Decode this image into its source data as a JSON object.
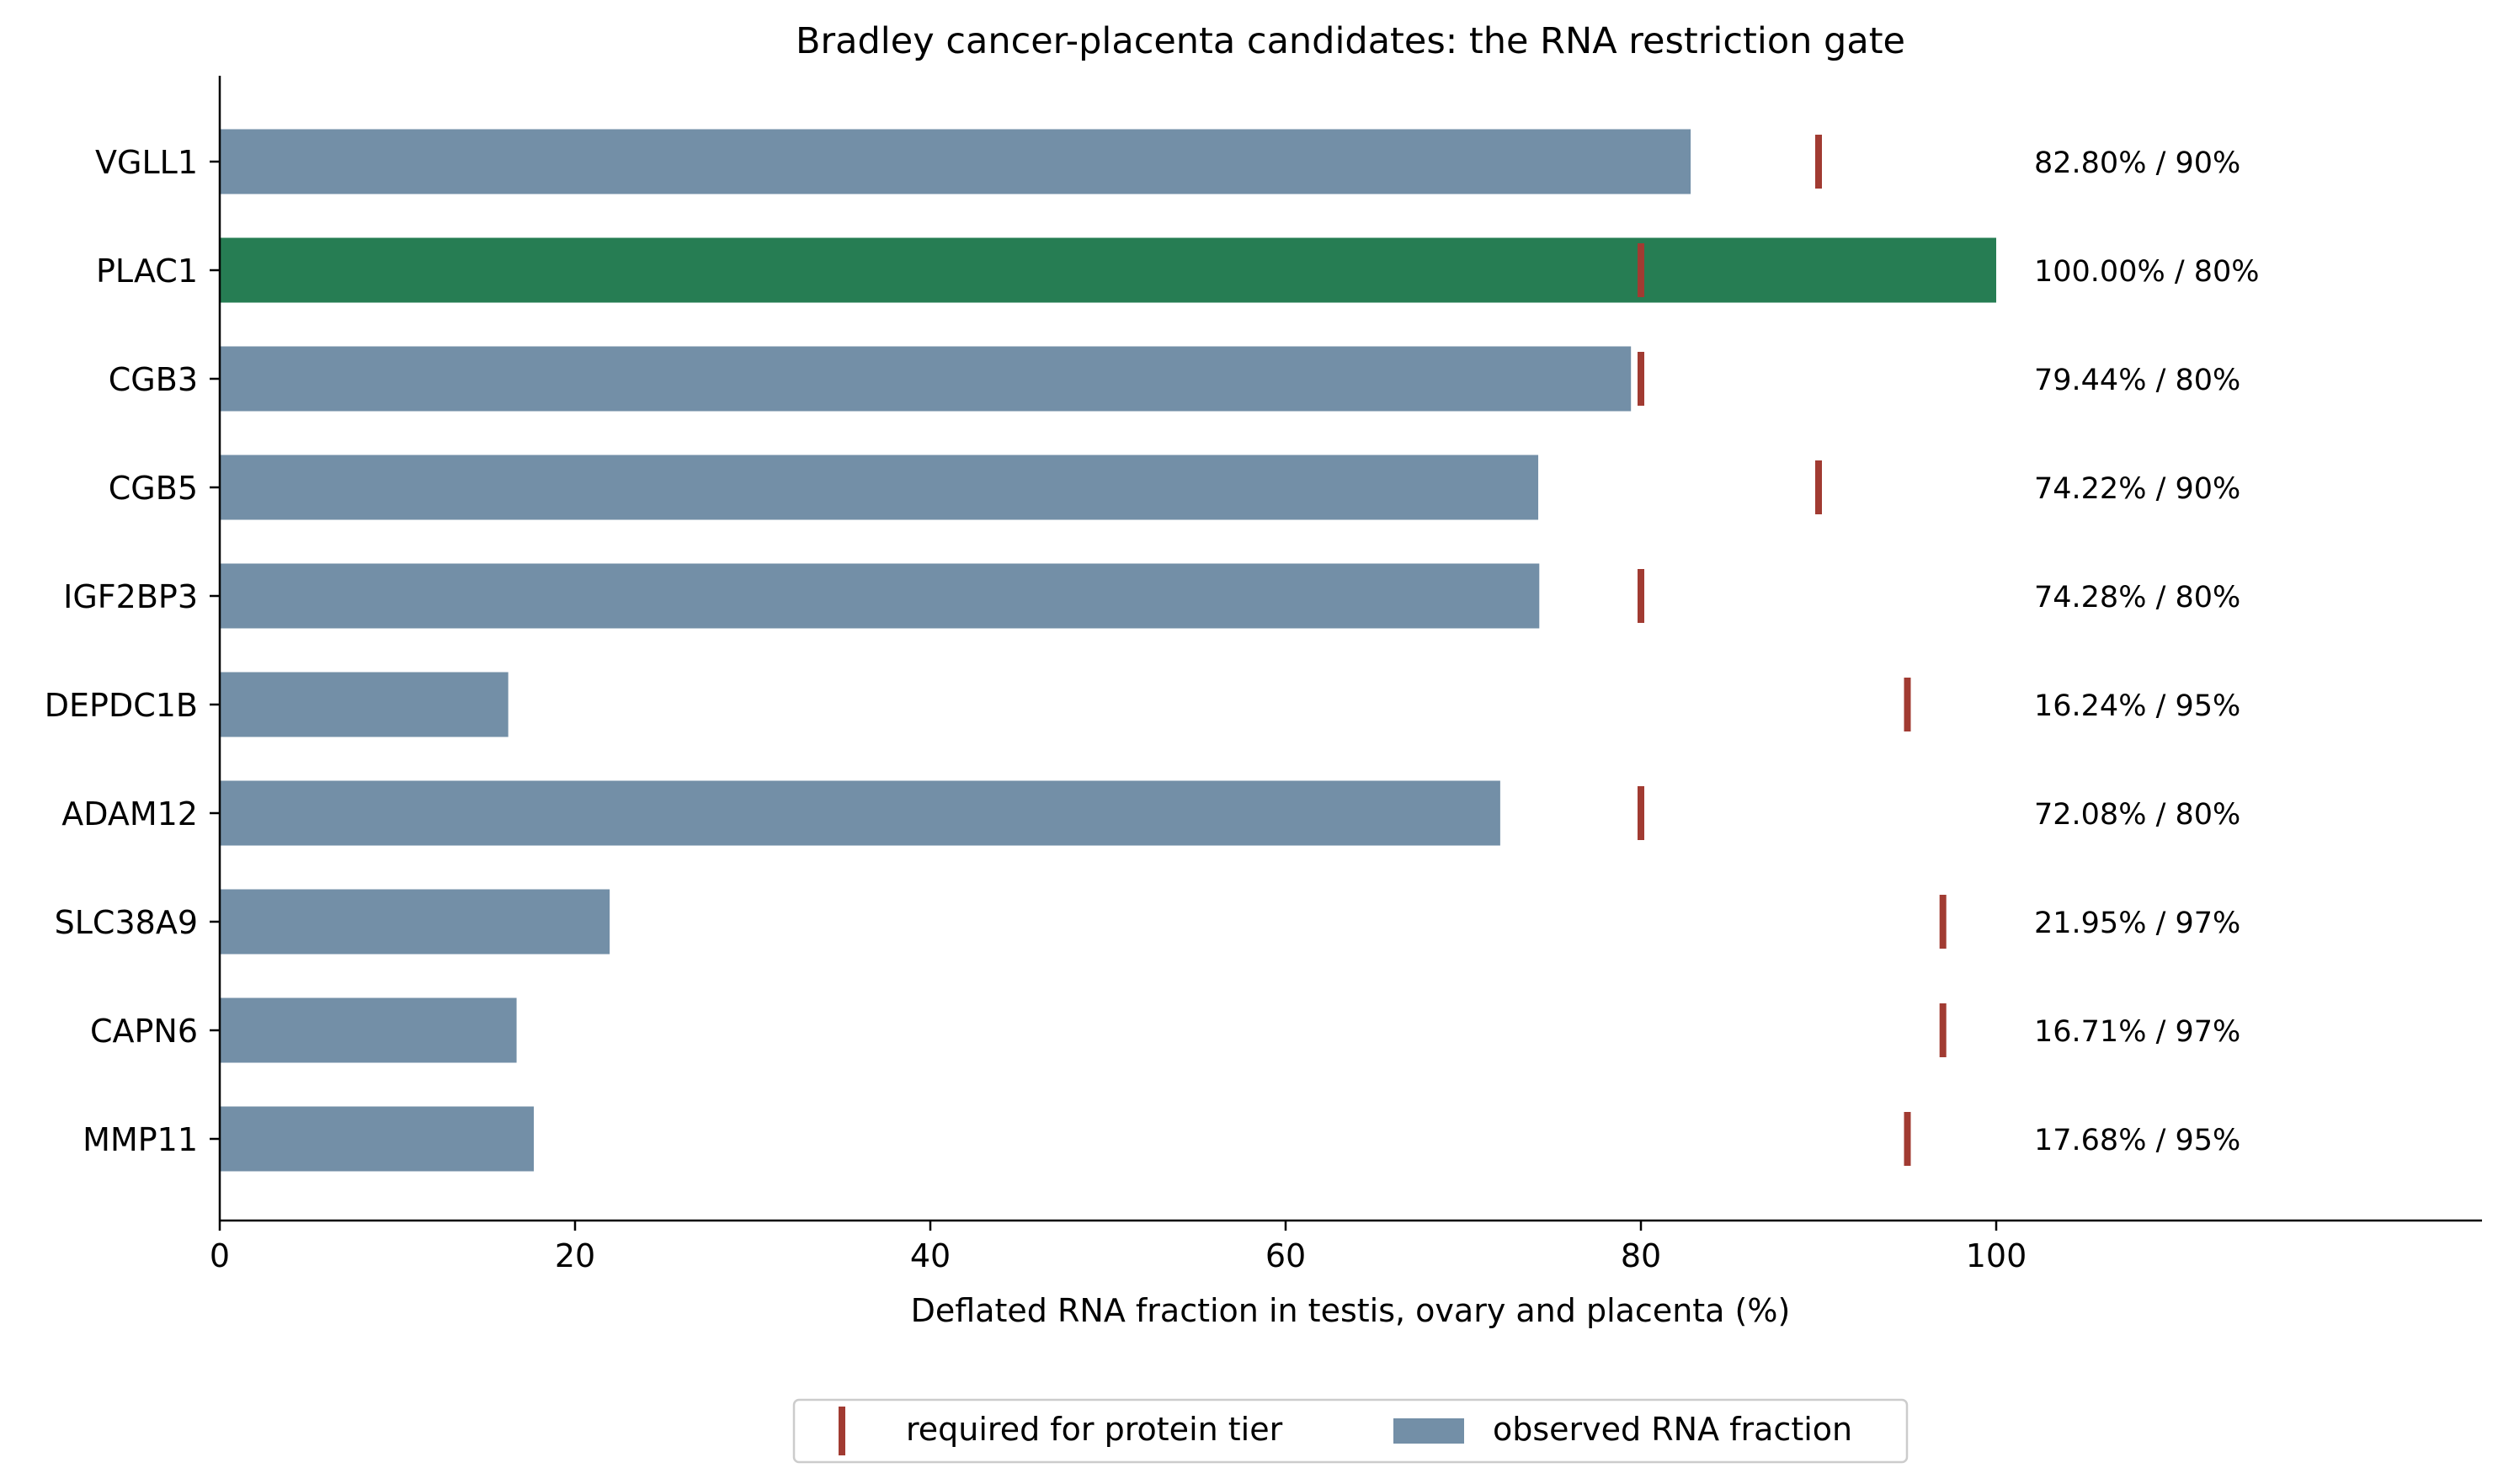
{
  "chart_data": {
    "type": "bar",
    "orientation": "horizontal",
    "title": "Bradley cancer-placenta candidates: the RNA restriction gate",
    "xlabel": "Deflated RNA fraction in testis, ovary and placenta (%)",
    "ylabel": "",
    "xlim": [
      0,
      127
    ],
    "xticks": [
      "0",
      "20",
      "40",
      "60",
      "80",
      "100"
    ],
    "grid": false,
    "legend_position": "bottom-center",
    "categories": [
      "VGLL1",
      "PLAC1",
      "CGB3",
      "CGB5",
      "IGF2BP3",
      "DEPDC1B",
      "ADAM12",
      "SLC38A9",
      "CAPN6",
      "MMP11"
    ],
    "series": [
      {
        "name": "observed RNA fraction",
        "values": [
          82.8,
          100.0,
          79.44,
          74.22,
          74.28,
          16.24,
          72.08,
          21.95,
          16.71,
          17.68
        ],
        "color": "#738fa7",
        "highlight_color": "#267d53",
        "highlight_index": 1
      },
      {
        "name": "required for protein tier",
        "values": [
          90,
          80,
          80,
          90,
          80,
          95,
          80,
          97,
          97,
          95
        ],
        "color": "#a13b32"
      }
    ],
    "value_labels": [
      "82.80% / 90%",
      "100.00% / 80%",
      "79.44% / 80%",
      "74.22% / 90%",
      "74.28% / 80%",
      "16.24% / 95%",
      "72.08% / 80%",
      "21.95% / 97%",
      "16.71% / 97%",
      "17.68% / 95%"
    ]
  }
}
